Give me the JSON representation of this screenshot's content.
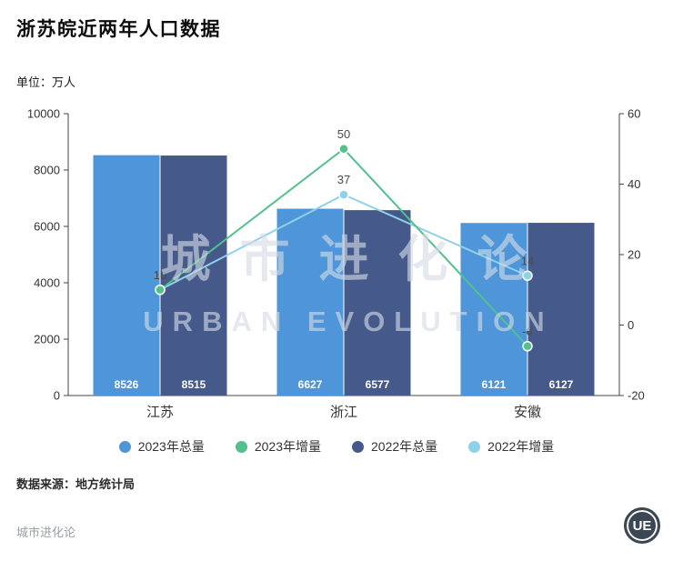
{
  "title": "浙苏皖近两年人口数据",
  "unit_label": "单位：万人",
  "source_label": "数据来源：地方统计局",
  "watermark": {
    "line1": "城市进化论",
    "line2": "URBAN EVOLUTION"
  },
  "footer": {
    "brand": "城市进化论",
    "logo_text": "UE"
  },
  "chart_data": {
    "type": "bar",
    "subtype": "grouped-bars-with-lines",
    "title": "浙苏皖近两年人口数据",
    "unit": "万人",
    "categories": [
      "江苏",
      "浙江",
      "安徽"
    ],
    "series": [
      {
        "name": "2023年总量",
        "type": "bar",
        "axis": "left",
        "color": "#4e96d9",
        "values": [
          8526,
          6627,
          6121
        ]
      },
      {
        "name": "2023年增量",
        "type": "line",
        "axis": "right",
        "color": "#53c18c",
        "values": [
          10,
          50,
          -6
        ]
      },
      {
        "name": "2022年总量",
        "type": "bar",
        "axis": "left",
        "color": "#455a8b",
        "values": [
          8515,
          6577,
          6127
        ]
      },
      {
        "name": "2022年增量",
        "type": "line",
        "axis": "right",
        "color": "#8ed2ea",
        "values": [
          10,
          37,
          14
        ]
      }
    ],
    "left_axis": {
      "min": 0,
      "max": 10000,
      "ticks": [
        0,
        2000,
        4000,
        6000,
        8000,
        10000
      ]
    },
    "right_axis": {
      "min": -20,
      "max": 60,
      "ticks": [
        -20,
        0,
        20,
        40,
        60
      ]
    },
    "grid": false,
    "legend_position": "bottom"
  }
}
